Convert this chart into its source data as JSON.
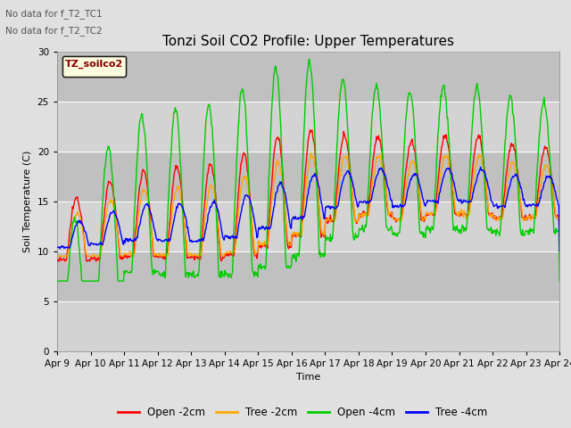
{
  "title": "Tonzi Soil CO2 Profile: Upper Temperatures",
  "xlabel": "Time",
  "ylabel": "Soil Temperature (C)",
  "annotations": [
    "No data for f_T2_TC1",
    "No data for f_T2_TC2"
  ],
  "legend_label": "TZ_soilco2",
  "legend_entries": [
    "Open -2cm",
    "Tree -2cm",
    "Open -4cm",
    "Tree -4cm"
  ],
  "legend_colors": [
    "#ff0000",
    "#ffa500",
    "#00cc00",
    "#0000ff"
  ],
  "ylim": [
    0,
    30
  ],
  "yticks": [
    0,
    5,
    10,
    15,
    20,
    25,
    30
  ],
  "x_tick_labels": [
    "Apr 9",
    "Apr 10",
    "Apr 11",
    "Apr 12",
    "Apr 13",
    "Apr 14",
    "Apr 15",
    "Apr 16",
    "Apr 17",
    "Apr 18",
    "Apr 19",
    "Apr 20",
    "Apr 21",
    "Apr 22",
    "Apr 23",
    "Apr 24"
  ],
  "bg_color": "#e0e0e0",
  "plot_bg_color": "#d3d3d3",
  "stripe_color": "#c0c0c0",
  "title_fontsize": 11,
  "label_fontsize": 8,
  "tick_fontsize": 7.5
}
